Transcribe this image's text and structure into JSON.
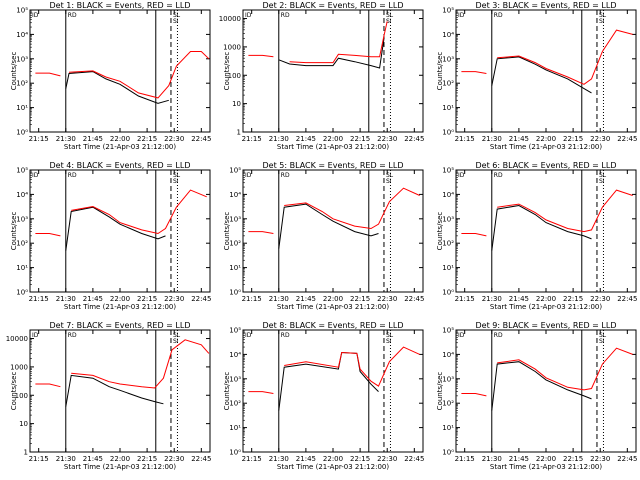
{
  "figure": {
    "ylabel": "Counts/sec",
    "xlabel": "Start Time (21-Apr-03 21:12:00)",
    "x_tick_labels": [
      "21:15",
      "21:30",
      "21:45",
      "22:00",
      "22:15",
      "22:30",
      "22:45"
    ],
    "corner_marks": [
      "ID",
      "RD",
      "SL",
      "SI"
    ]
  },
  "chart_data": [
    {
      "type": "line",
      "title": "Det 1: BLACK = Events, RED = LLD",
      "ylim": [
        1,
        100000
      ],
      "ylog": true,
      "y_tick_labels": [
        "10⁰",
        "10¹",
        "10²",
        "10³",
        "10⁴",
        "10⁵"
      ],
      "x": [
        21.22,
        21.35,
        21.45,
        21.5,
        21.53,
        21.75,
        21.87,
        22.0,
        22.17,
        22.35,
        22.45,
        22.52,
        22.65,
        22.75,
        22.82
      ],
      "series": [
        {
          "name": "BLACK",
          "color": "#000000",
          "values": [
            null,
            null,
            null,
            60,
            250,
            300,
            150,
            90,
            30,
            15,
            20,
            null,
            null,
            null,
            null
          ]
        },
        {
          "name": "RED",
          "color": "#ff0000",
          "values": [
            260,
            260,
            200,
            null,
            280,
            320,
            180,
            120,
            40,
            25,
            80,
            500,
            2000,
            2000,
            1000
          ]
        }
      ]
    },
    {
      "type": "line",
      "title": "Det 2: BLACK = Events, RED = LLD",
      "ylim": [
        1,
        20000
      ],
      "ylog": true,
      "y_tick_labels": [
        "1",
        "10",
        "100",
        "1000",
        "10000"
      ],
      "x": [
        21.22,
        21.35,
        21.45,
        21.5,
        21.6,
        21.75,
        22.0,
        22.05,
        22.2,
        22.35,
        22.43,
        22.47,
        22.5
      ],
      "series": [
        {
          "name": "BLACK",
          "color": "#000000",
          "values": [
            null,
            null,
            null,
            350,
            250,
            220,
            220,
            400,
            300,
            220,
            180,
            2000,
            null
          ]
        },
        {
          "name": "RED",
          "color": "#ff0000",
          "values": [
            500,
            500,
            450,
            null,
            300,
            280,
            280,
            550,
            500,
            450,
            450,
            2500,
            8000
          ]
        }
      ]
    },
    {
      "type": "line",
      "title": "Det 3: BLACK = Events, RED = LLD",
      "ylim": [
        1,
        100000
      ],
      "ylog": true,
      "y_tick_labels": [
        "10⁰",
        "10¹",
        "10²",
        "10³",
        "10⁴",
        "10⁵"
      ],
      "x": [
        21.22,
        21.35,
        21.45,
        21.5,
        21.55,
        21.75,
        21.9,
        22.0,
        22.2,
        22.35,
        22.42,
        22.52,
        22.65,
        22.8
      ],
      "series": [
        {
          "name": "BLACK",
          "color": "#000000",
          "values": [
            null,
            null,
            null,
            80,
            1000,
            1200,
            600,
            350,
            150,
            60,
            40,
            null,
            null,
            null
          ]
        },
        {
          "name": "RED",
          "color": "#ff0000",
          "values": [
            300,
            300,
            250,
            null,
            1100,
            1300,
            700,
            400,
            180,
            90,
            150,
            2000,
            15000,
            10000
          ]
        }
      ]
    },
    {
      "type": "line",
      "title": "Det 4: BLACK = Events, RED = LLD",
      "ylim": [
        1,
        100000
      ],
      "ylog": true,
      "y_tick_labels": [
        "10⁰",
        "10¹",
        "10²",
        "10³",
        "10⁴",
        "10⁵"
      ],
      "x": [
        21.22,
        21.35,
        21.45,
        21.5,
        21.55,
        21.75,
        21.9,
        22.0,
        22.2,
        22.35,
        22.42,
        22.52,
        22.65,
        22.8
      ],
      "series": [
        {
          "name": "BLACK",
          "color": "#000000",
          "values": [
            null,
            null,
            null,
            50,
            2000,
            3000,
            1200,
            600,
            250,
            150,
            200,
            null,
            null,
            null
          ]
        },
        {
          "name": "RED",
          "color": "#ff0000",
          "values": [
            250,
            250,
            200,
            null,
            2200,
            3200,
            1500,
            700,
            350,
            250,
            400,
            3000,
            15000,
            8000
          ]
        }
      ]
    },
    {
      "type": "line",
      "title": "Det 5: BLACK = Events, RED = LLD",
      "ylim": [
        1,
        100000
      ],
      "ylog": true,
      "y_tick_labels": [
        "10⁰",
        "10¹",
        "10²",
        "10³",
        "10⁴",
        "10⁵"
      ],
      "x": [
        21.22,
        21.35,
        21.45,
        21.5,
        21.55,
        21.75,
        21.9,
        22.0,
        22.2,
        22.35,
        22.42,
        22.52,
        22.65,
        22.8
      ],
      "series": [
        {
          "name": "BLACK",
          "color": "#000000",
          "values": [
            null,
            null,
            null,
            60,
            3000,
            4000,
            1500,
            800,
            300,
            200,
            250,
            null,
            null,
            null
          ]
        },
        {
          "name": "RED",
          "color": "#ff0000",
          "values": [
            300,
            300,
            250,
            null,
            3500,
            4500,
            2000,
            1000,
            500,
            400,
            600,
            5000,
            18000,
            9000
          ]
        }
      ]
    },
    {
      "type": "line",
      "title": "Det 6: BLACK = Events, RED = LLD",
      "ylim": [
        1,
        100000
      ],
      "ylog": true,
      "y_tick_labels": [
        "10⁰",
        "10¹",
        "10²",
        "10³",
        "10⁴",
        "10⁵"
      ],
      "x": [
        21.22,
        21.35,
        21.45,
        21.5,
        21.55,
        21.75,
        21.9,
        22.0,
        22.2,
        22.35,
        22.42,
        22.52,
        22.65,
        22.8
      ],
      "series": [
        {
          "name": "BLACK",
          "color": "#000000",
          "values": [
            null,
            null,
            null,
            50,
            2500,
            3500,
            1500,
            700,
            300,
            200,
            150,
            null,
            null,
            null
          ]
        },
        {
          "name": "RED",
          "color": "#ff0000",
          "values": [
            250,
            250,
            200,
            null,
            3000,
            4000,
            1800,
            900,
            400,
            300,
            350,
            3000,
            15000,
            9000
          ]
        }
      ]
    },
    {
      "type": "line",
      "title": "Det 7: BLACK = Events, RED = LLD",
      "ylim": [
        1,
        20000
      ],
      "ylog": true,
      "y_tick_labels": [
        "1",
        "10",
        "100",
        "1000",
        "10000"
      ],
      "x": [
        21.22,
        21.35,
        21.45,
        21.5,
        21.55,
        21.75,
        21.9,
        22.0,
        22.2,
        22.32,
        22.4,
        22.48,
        22.6,
        22.75,
        22.82
      ],
      "series": [
        {
          "name": "BLACK",
          "color": "#000000",
          "values": [
            null,
            null,
            null,
            40,
            500,
            400,
            200,
            150,
            80,
            60,
            50,
            null,
            null,
            null,
            null
          ]
        },
        {
          "name": "RED",
          "color": "#ff0000",
          "values": [
            250,
            250,
            200,
            null,
            600,
            500,
            300,
            250,
            200,
            180,
            400,
            4000,
            9000,
            6000,
            3000
          ]
        }
      ]
    },
    {
      "type": "line",
      "title": "Det 8: BLACK = Events, RED = LLD",
      "ylim": [
        1,
        100000
      ],
      "ylog": true,
      "y_tick_labels": [
        "10⁰",
        "10¹",
        "10²",
        "10³",
        "10⁴",
        "10⁵"
      ],
      "x": [
        21.22,
        21.35,
        21.45,
        21.5,
        21.55,
        21.75,
        22.05,
        22.08,
        22.22,
        22.25,
        22.35,
        22.42,
        22.52,
        22.65,
        22.8
      ],
      "series": [
        {
          "name": "BLACK",
          "color": "#000000",
          "values": [
            null,
            null,
            null,
            50,
            3000,
            4000,
            2500,
            12000,
            11000,
            2000,
            600,
            300,
            null,
            null,
            null
          ]
        },
        {
          "name": "RED",
          "color": "#ff0000",
          "values": [
            300,
            300,
            250,
            null,
            3500,
            5000,
            3000,
            12000,
            11000,
            2500,
            800,
            500,
            5000,
            20000,
            10000
          ]
        }
      ]
    },
    {
      "type": "line",
      "title": "Det 9: BLACK = Events, RED = LLD",
      "ylim": [
        1,
        100000
      ],
      "ylog": true,
      "y_tick_labels": [
        "10⁰",
        "10¹",
        "10²",
        "10³",
        "10⁴",
        "10⁵"
      ],
      "x": [
        21.22,
        21.35,
        21.45,
        21.5,
        21.55,
        21.75,
        21.9,
        22.0,
        22.2,
        22.35,
        22.42,
        22.52,
        22.65,
        22.8
      ],
      "series": [
        {
          "name": "BLACK",
          "color": "#000000",
          "values": [
            null,
            null,
            null,
            50,
            4000,
            5000,
            2000,
            900,
            350,
            200,
            150,
            null,
            null,
            null
          ]
        },
        {
          "name": "RED",
          "color": "#ff0000",
          "values": [
            250,
            250,
            200,
            null,
            4500,
            6000,
            2500,
            1100,
            450,
            350,
            400,
            4000,
            18000,
            10000
          ]
        }
      ]
    }
  ]
}
